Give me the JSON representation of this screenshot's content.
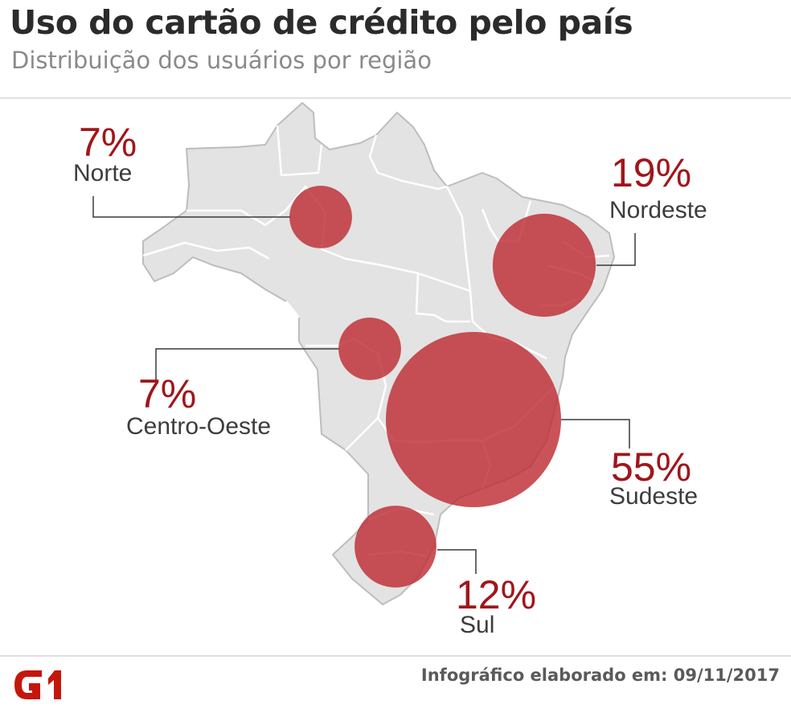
{
  "header": {
    "title": "Uso do cartão de crédito pelo país",
    "subtitle": "Distribuição dos usuários por região"
  },
  "regions": [
    {
      "id": "norte",
      "name": "Norte",
      "percent_label": "7%",
      "value": 7
    },
    {
      "id": "nordeste",
      "name": "Nordeste",
      "percent_label": "19%",
      "value": 19
    },
    {
      "id": "centro-oeste",
      "name": "Centro-Oeste",
      "percent_label": "7%",
      "value": 7
    },
    {
      "id": "sudeste",
      "name": "Sudeste",
      "percent_label": "55%",
      "value": 55
    },
    {
      "id": "sul",
      "name": "Sul",
      "percent_label": "12%",
      "value": 12
    }
  ],
  "footer": {
    "logo_text": "G1",
    "credit": "Infográfico elaborado em: 09/11/2017"
  },
  "colors": {
    "bubble": "#bd2d33",
    "percent": "#a0161b",
    "land": "#e3e3e3",
    "logo": "#c4170c"
  }
}
